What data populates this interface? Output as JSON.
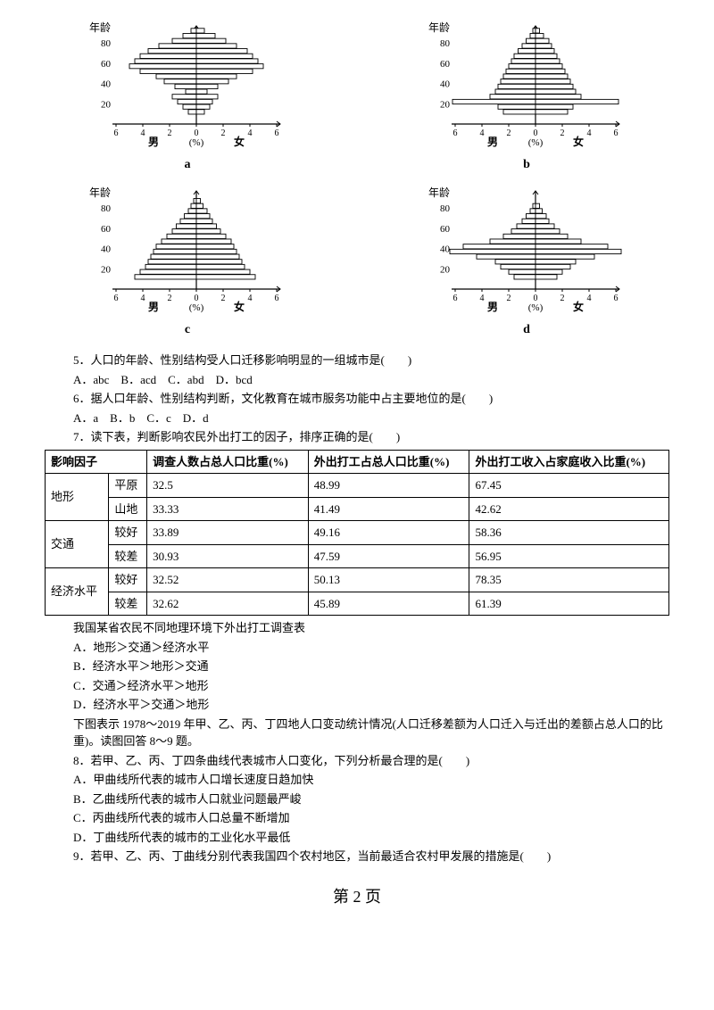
{
  "pyramids": {
    "common": {
      "y_title": "年龄",
      "y_ticks": [
        20,
        40,
        60,
        80
      ],
      "y_max": 95,
      "x_ticks": [
        -6,
        -4,
        -2,
        0,
        2,
        4,
        6
      ],
      "x_tick_labels": [
        "6",
        "4",
        "2",
        "0",
        "2",
        "4",
        "6"
      ],
      "left_label": "男",
      "right_label": "女",
      "x_unit": "(%)",
      "axis_color": "#000000",
      "bar_stroke": "#000000",
      "bar_fill": "#ffffff",
      "bar_fill_dark": "#000000",
      "label_fontsize": 12
    },
    "charts": [
      {
        "tag": "a",
        "bars": [
          {
            "age": 12,
            "m": 0.6,
            "f": 0.6
          },
          {
            "age": 17,
            "m": 1.0,
            "f": 1.0
          },
          {
            "age": 22,
            "m": 1.4,
            "f": 1.2
          },
          {
            "age": 27,
            "m": 1.8,
            "f": 1.6
          },
          {
            "age": 32,
            "m": 0.8,
            "f": 0.8
          },
          {
            "age": 37,
            "m": 1.6,
            "f": 1.6
          },
          {
            "age": 42,
            "m": 2.4,
            "f": 2.4
          },
          {
            "age": 47,
            "m": 3.0,
            "f": 3.0
          },
          {
            "age": 52,
            "m": 4.2,
            "f": 4.2
          },
          {
            "age": 57,
            "m": 5.0,
            "f": 5.0
          },
          {
            "age": 62,
            "m": 4.6,
            "f": 4.6
          },
          {
            "age": 67,
            "m": 4.2,
            "f": 4.2
          },
          {
            "age": 72,
            "m": 3.6,
            "f": 3.8
          },
          {
            "age": 77,
            "m": 2.8,
            "f": 3.0
          },
          {
            "age": 82,
            "m": 1.8,
            "f": 2.2
          },
          {
            "age": 87,
            "m": 1.0,
            "f": 1.4
          },
          {
            "age": 92,
            "m": 0.4,
            "f": 0.6
          }
        ]
      },
      {
        "tag": "b",
        "bars": [
          {
            "age": 12,
            "m": 2.4,
            "f": 2.4
          },
          {
            "age": 17,
            "m": 2.8,
            "f": 2.8
          },
          {
            "age": 22,
            "m": 6.2,
            "f": 6.2
          },
          {
            "age": 27,
            "m": 3.4,
            "f": 3.4
          },
          {
            "age": 32,
            "m": 3.0,
            "f": 3.0
          },
          {
            "age": 37,
            "m": 2.8,
            "f": 2.8
          },
          {
            "age": 42,
            "m": 2.6,
            "f": 2.6
          },
          {
            "age": 47,
            "m": 2.4,
            "f": 2.4
          },
          {
            "age": 52,
            "m": 2.2,
            "f": 2.2
          },
          {
            "age": 57,
            "m": 2.0,
            "f": 2.0
          },
          {
            "age": 62,
            "m": 1.8,
            "f": 1.8
          },
          {
            "age": 67,
            "m": 1.6,
            "f": 1.6
          },
          {
            "age": 72,
            "m": 1.3,
            "f": 1.4
          },
          {
            "age": 77,
            "m": 1.0,
            "f": 1.2
          },
          {
            "age": 82,
            "m": 0.7,
            "f": 1.0
          },
          {
            "age": 87,
            "m": 0.4,
            "f": 0.6
          },
          {
            "age": 92,
            "m": 0.2,
            "f": 0.3
          }
        ]
      },
      {
        "tag": "c",
        "bars": [
          {
            "age": 12,
            "m": 4.6,
            "f": 4.4
          },
          {
            "age": 17,
            "m": 4.2,
            "f": 4.0
          },
          {
            "age": 22,
            "m": 3.8,
            "f": 3.6
          },
          {
            "age": 27,
            "m": 3.6,
            "f": 3.4
          },
          {
            "age": 32,
            "m": 3.4,
            "f": 3.2
          },
          {
            "age": 37,
            "m": 3.2,
            "f": 3.0
          },
          {
            "age": 42,
            "m": 3.0,
            "f": 2.8
          },
          {
            "age": 47,
            "m": 2.6,
            "f": 2.6
          },
          {
            "age": 52,
            "m": 2.2,
            "f": 2.2
          },
          {
            "age": 57,
            "m": 1.8,
            "f": 1.8
          },
          {
            "age": 62,
            "m": 1.5,
            "f": 1.5
          },
          {
            "age": 67,
            "m": 1.2,
            "f": 1.2
          },
          {
            "age": 72,
            "m": 0.9,
            "f": 1.0
          },
          {
            "age": 77,
            "m": 0.6,
            "f": 0.8
          },
          {
            "age": 82,
            "m": 0.4,
            "f": 0.5
          },
          {
            "age": 87,
            "m": 0.2,
            "f": 0.3
          }
        ]
      },
      {
        "tag": "d",
        "bars": [
          {
            "age": 12,
            "m": 1.6,
            "f": 1.6
          },
          {
            "age": 17,
            "m": 2.0,
            "f": 2.0
          },
          {
            "age": 22,
            "m": 2.6,
            "f": 2.6
          },
          {
            "age": 27,
            "m": 3.0,
            "f": 3.0
          },
          {
            "age": 32,
            "m": 4.4,
            "f": 4.4
          },
          {
            "age": 37,
            "m": 6.4,
            "f": 6.4
          },
          {
            "age": 42,
            "m": 5.4,
            "f": 5.4
          },
          {
            "age": 47,
            "m": 3.4,
            "f": 3.4
          },
          {
            "age": 52,
            "m": 2.4,
            "f": 2.4
          },
          {
            "age": 57,
            "m": 1.8,
            "f": 1.8
          },
          {
            "age": 62,
            "m": 1.4,
            "f": 1.4
          },
          {
            "age": 67,
            "m": 1.0,
            "f": 1.0
          },
          {
            "age": 72,
            "m": 0.7,
            "f": 0.8
          },
          {
            "age": 77,
            "m": 0.4,
            "f": 0.5
          },
          {
            "age": 82,
            "m": 0.2,
            "f": 0.3
          }
        ]
      }
    ]
  },
  "q5": {
    "stem": "5．人口的年龄、性别结构受人口迁移影响明显的一组城市是(　　)",
    "opts": "A．abc　B．acd　C．abd　D．bcd"
  },
  "q6": {
    "stem": "6．据人口年龄、性别结构判断，文化教育在城市服务功能中占主要地位的是(　　)",
    "opts": "A．a　B．b　C．c　D．d"
  },
  "q7": {
    "stem": "7．读下表，判断影响农民外出打工的因子，排序正确的是(　　)",
    "caption": "我国某省农民不同地理环境下外出打工调查表",
    "opts": [
      "A．地形＞交通＞经济水平",
      "B．经济水平＞地形＞交通",
      "C．交通＞经济水平＞地形",
      "D．经济水平＞交通＞地形"
    ]
  },
  "table": {
    "headers": [
      "影响因子",
      "",
      "调查人数占总人口比重(%)",
      "外出打工占总人口比重(%)",
      "外出打工收入占家庭收入比重(%)"
    ],
    "rows": [
      {
        "group": "地形",
        "group_span": 2,
        "sub": "平原",
        "c1": "32.5",
        "c2": "48.99",
        "c3": "67.45"
      },
      {
        "sub": "山地",
        "c1": "33.33",
        "c2": "41.49",
        "c3": "42.62"
      },
      {
        "group": "交通",
        "group_span": 2,
        "sub": "较好",
        "c1": "33.89",
        "c2": "49.16",
        "c3": "58.36"
      },
      {
        "sub": "较差",
        "c1": "30.93",
        "c2": "47.59",
        "c3": "56.95"
      },
      {
        "group": "经济水平",
        "group_span": 2,
        "sub": "较好",
        "c1": "32.52",
        "c2": "50.13",
        "c3": "78.35"
      },
      {
        "sub": "较差",
        "c1": "32.62",
        "c2": "45.89",
        "c3": "61.39"
      }
    ]
  },
  "passage89": "下图表示 1978～2019 年甲、乙、丙、丁四地人口变动统计情况(人口迁移差额为人口迁入与迁出的差额占总人口的比重)。读图回答 8～9 题。",
  "q8": {
    "stem": "8．若甲、乙、丙、丁四条曲线代表城市人口变化，下列分析最合理的是(　　)",
    "opts": [
      "A．甲曲线所代表的城市人口增长速度日趋加快",
      "B．乙曲线所代表的城市人口就业问题最严峻",
      "C．丙曲线所代表的城市人口总量不断增加",
      "D．丁曲线所代表的城市的工业化水平最低"
    ]
  },
  "q9": {
    "stem": "9．若甲、乙、丙、丁曲线分别代表我国四个农村地区，当前最适合农村甲发展的措施是(　　)"
  },
  "footer": "第 2 页"
}
